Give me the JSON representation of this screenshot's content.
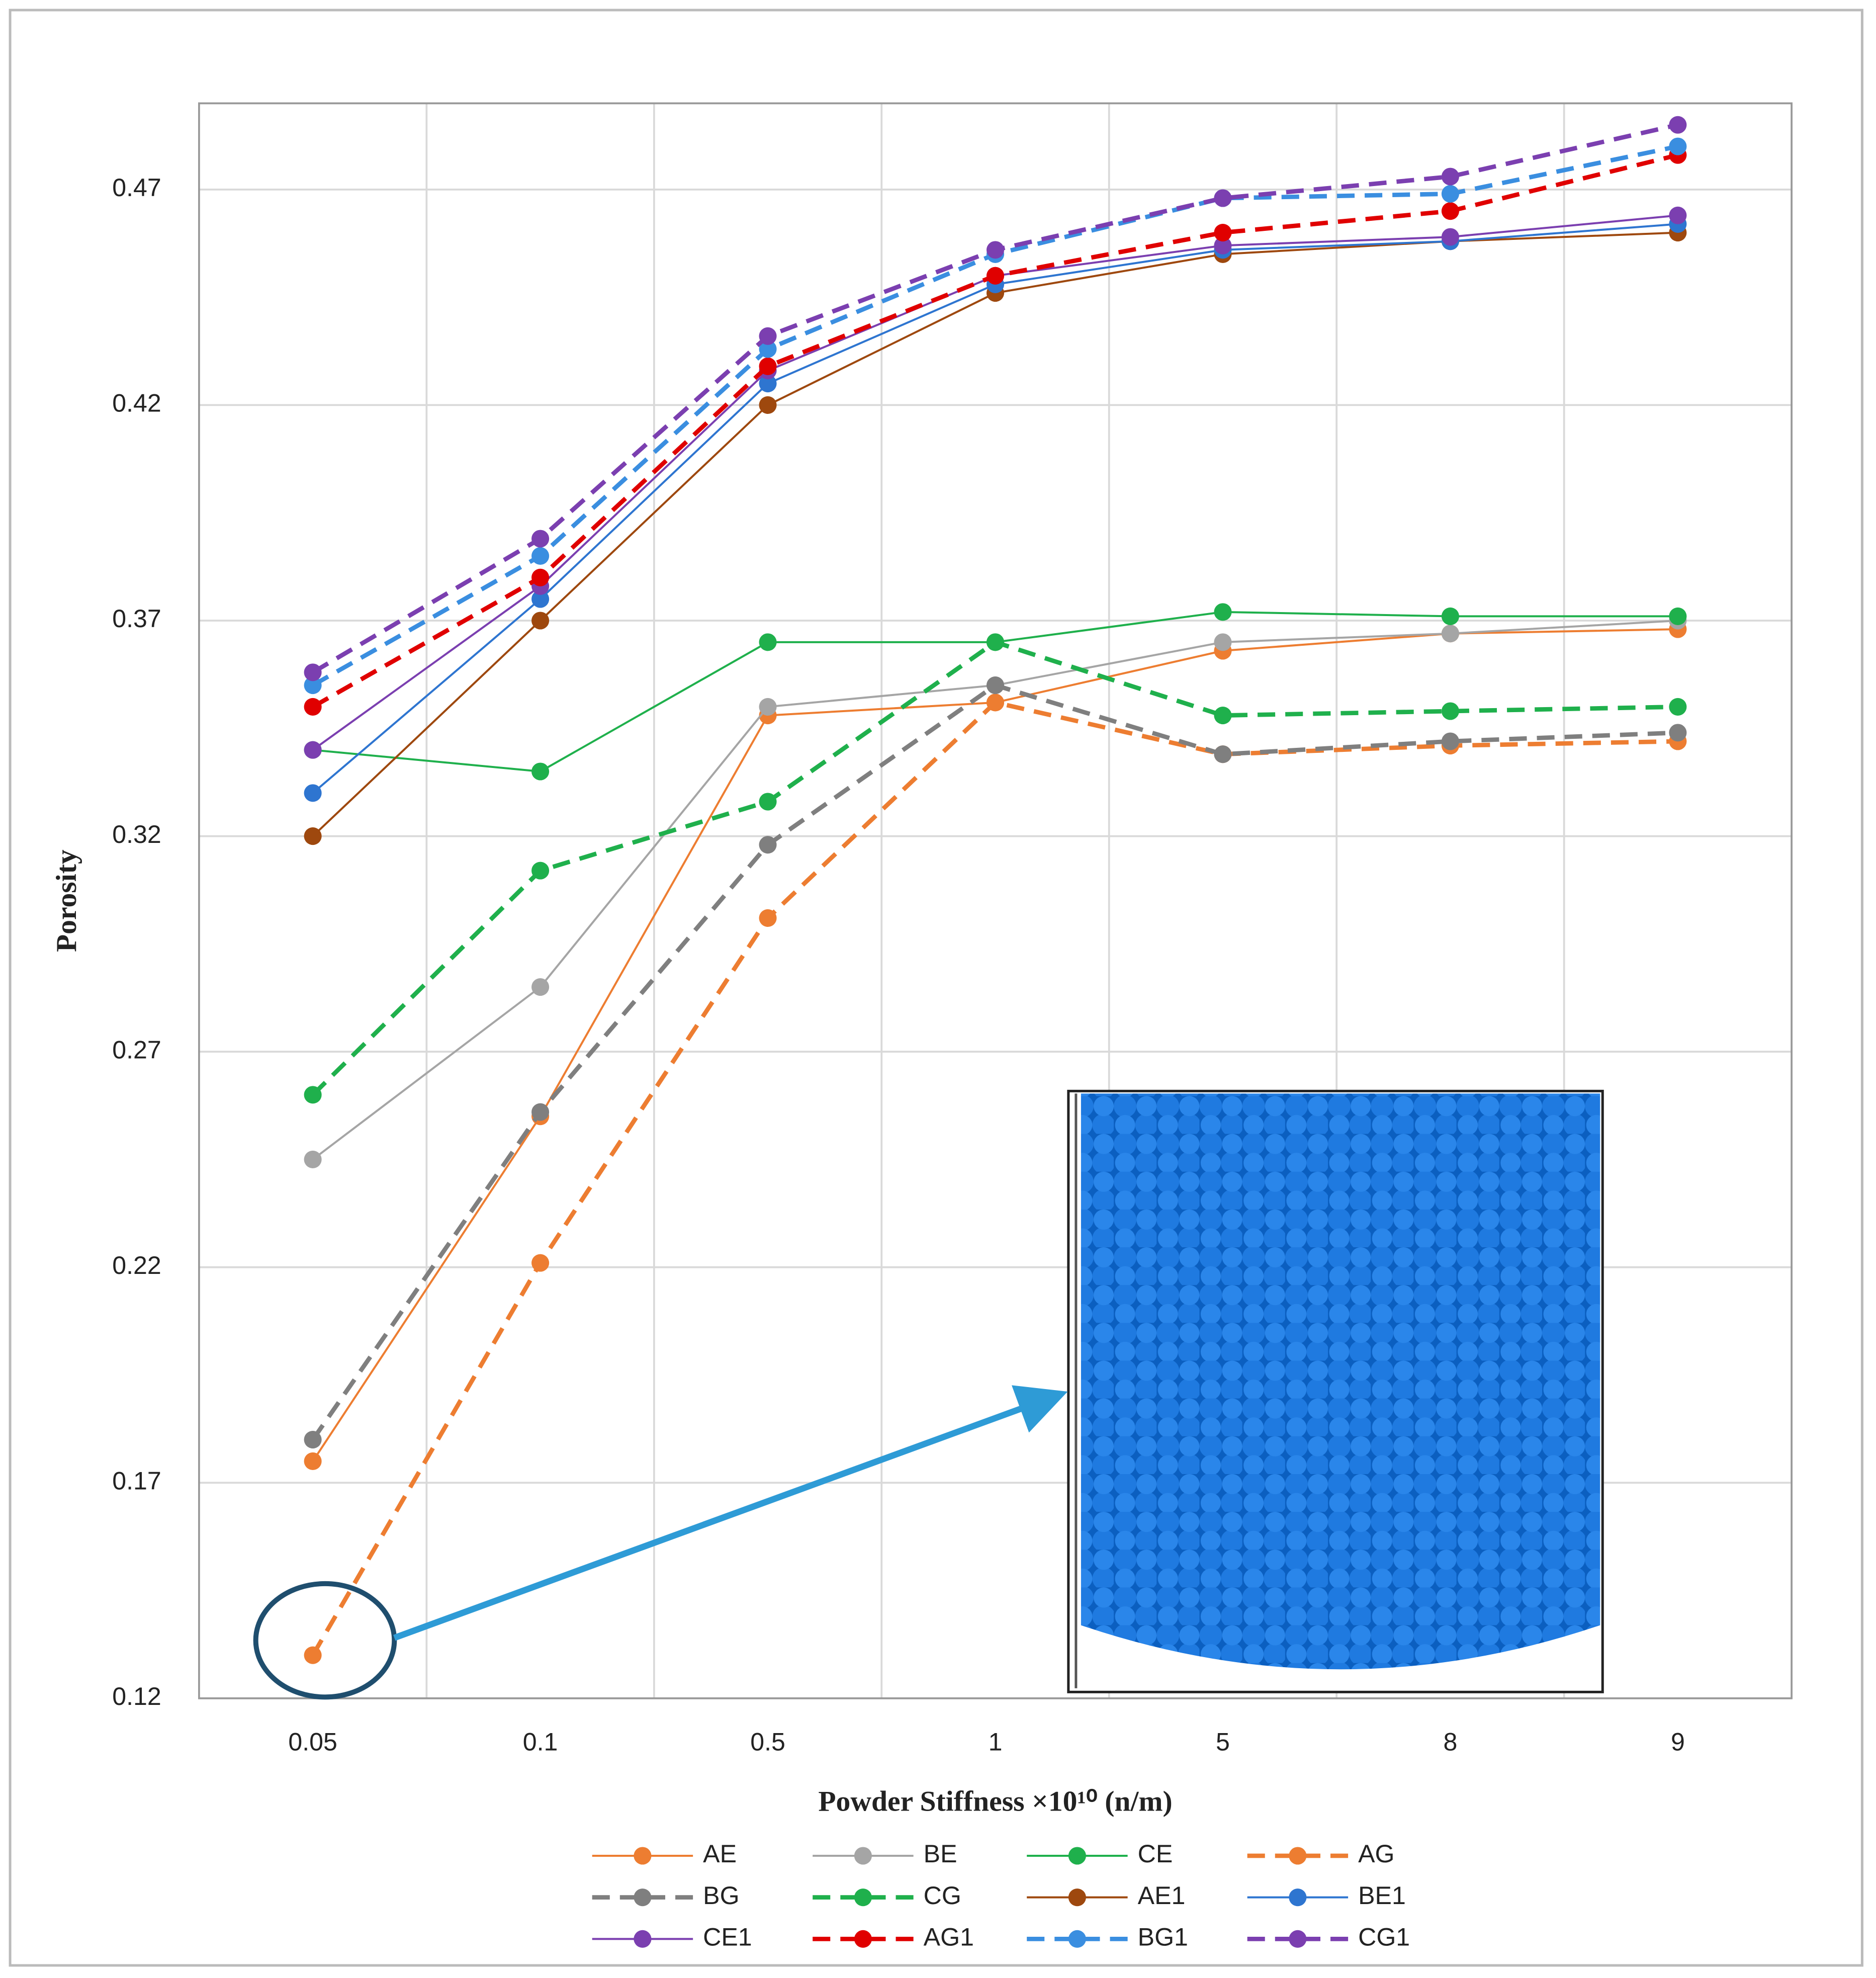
{
  "chart_data": {
    "type": "line",
    "x_label": "Powder Stiffness ×10¹⁰ (n/m)",
    "y_label": "Porosity",
    "categories": [
      "0.05",
      "0.1",
      "0.5",
      "1",
      "5",
      "8",
      "9"
    ],
    "ylim": [
      0.12,
      0.49
    ],
    "yticks": [
      0.12,
      0.17,
      0.22,
      0.27,
      0.32,
      0.37,
      0.42,
      0.47
    ],
    "grid": true,
    "legend": "bottom",
    "series": [
      {
        "name": "AE",
        "color": "#ed7d31",
        "dashed": false,
        "values": [
          0.175,
          0.255,
          0.348,
          0.351,
          0.363,
          0.367,
          0.368
        ]
      },
      {
        "name": "BE",
        "color": "#a5a5a5",
        "dashed": false,
        "values": [
          0.245,
          0.285,
          0.35,
          0.355,
          0.365,
          0.367,
          0.37
        ]
      },
      {
        "name": "CE",
        "color": "#1fb04c",
        "dashed": false,
        "values": [
          0.34,
          0.335,
          0.365,
          0.365,
          0.372,
          0.371,
          0.371
        ]
      },
      {
        "name": "AG",
        "color": "#ed7d31",
        "dashed": true,
        "values": [
          0.13,
          0.221,
          0.301,
          0.351,
          0.339,
          0.341,
          0.342
        ]
      },
      {
        "name": "BG",
        "color": "#7f7f7f",
        "dashed": true,
        "values": [
          0.18,
          0.256,
          0.318,
          0.355,
          0.339,
          0.342,
          0.344
        ]
      },
      {
        "name": "CG",
        "color": "#1fb04c",
        "dashed": true,
        "values": [
          0.26,
          0.312,
          0.328,
          0.365,
          0.348,
          0.349,
          0.35
        ]
      },
      {
        "name": "AE1",
        "color": "#9e480e",
        "dashed": false,
        "values": [
          0.32,
          0.37,
          0.42,
          0.446,
          0.455,
          0.458,
          0.46
        ]
      },
      {
        "name": "BE1",
        "color": "#2e75d0",
        "dashed": false,
        "values": [
          0.33,
          0.375,
          0.425,
          0.448,
          0.456,
          0.458,
          0.462
        ]
      },
      {
        "name": "CE1",
        "color": "#7b3fb0",
        "dashed": false,
        "values": [
          0.34,
          0.378,
          0.428,
          0.45,
          0.457,
          0.459,
          0.464
        ]
      },
      {
        "name": "AG1",
        "color": "#e00000",
        "dashed": true,
        "values": [
          0.35,
          0.38,
          0.429,
          0.45,
          0.46,
          0.465,
          0.478
        ]
      },
      {
        "name": "BG1",
        "color": "#3a8ee0",
        "dashed": true,
        "values": [
          0.355,
          0.385,
          0.433,
          0.455,
          0.468,
          0.469,
          0.48
        ]
      },
      {
        "name": "CG1",
        "color": "#7b3fb0",
        "dashed": true,
        "values": [
          0.358,
          0.389,
          0.436,
          0.456,
          0.468,
          0.473,
          0.485
        ]
      }
    ]
  }
}
